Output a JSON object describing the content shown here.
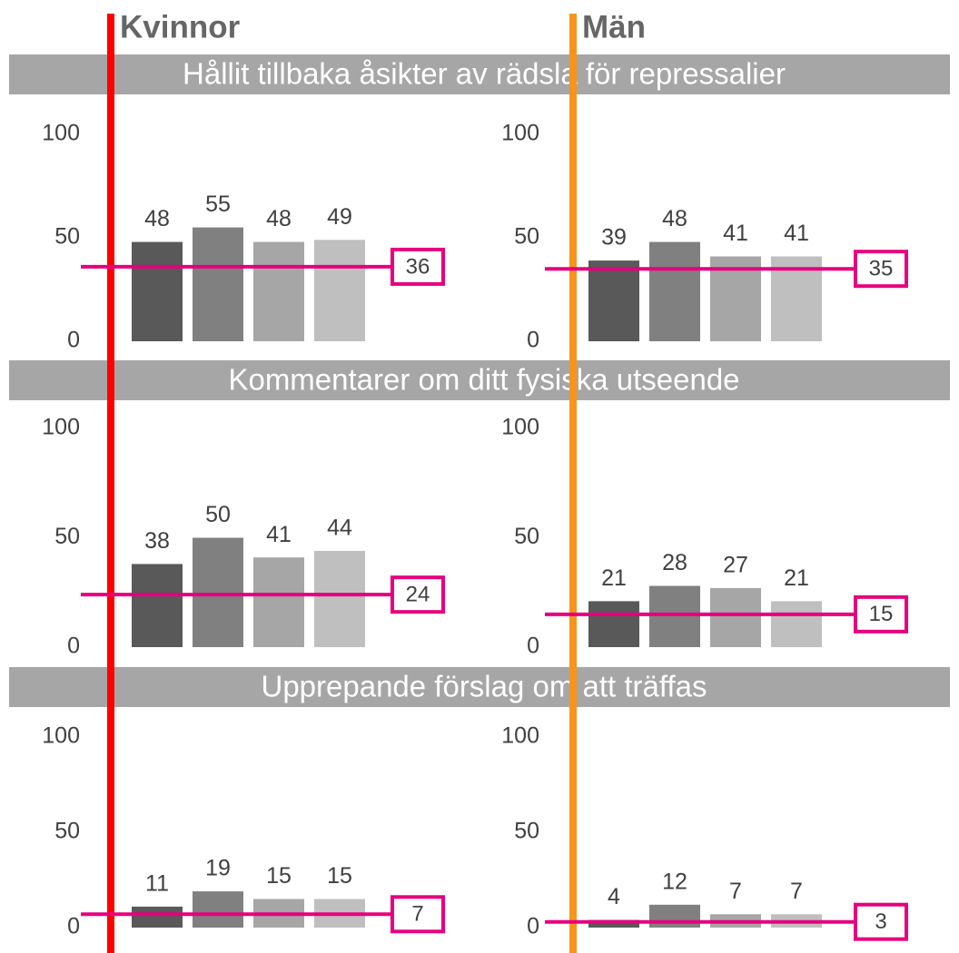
{
  "columns": [
    "Kvinnor",
    "Män"
  ],
  "column_colors": [
    "#ff0000",
    "#f7941d"
  ],
  "sections": [
    "Hållit tillbaka åsikter av rädsla för repressalier",
    "Kommentarer om ditt fysiska utseende",
    "Upprepande förslag om att träffas"
  ],
  "chart_data": [
    {
      "type": "bar",
      "values": [
        48,
        55,
        48,
        49
      ],
      "colors": [
        "#595959",
        "#808080",
        "#a6a6a6",
        "#bfbfbf"
      ],
      "reference": 36,
      "reference_color": "#e6007e",
      "ylim": [
        0,
        100
      ],
      "yticks": [
        0,
        50,
        100
      ]
    },
    {
      "type": "bar",
      "values": [
        39,
        48,
        41,
        41
      ],
      "colors": [
        "#595959",
        "#808080",
        "#a6a6a6",
        "#bfbfbf"
      ],
      "reference": 35,
      "reference_color": "#e6007e",
      "ylim": [
        0,
        100
      ],
      "yticks": [
        0,
        50,
        100
      ]
    },
    {
      "type": "bar",
      "values": [
        38,
        50,
        41,
        44
      ],
      "colors": [
        "#595959",
        "#808080",
        "#a6a6a6",
        "#bfbfbf"
      ],
      "reference": 24,
      "reference_color": "#e6007e",
      "ylim": [
        0,
        100
      ],
      "yticks": [
        0,
        50,
        100
      ]
    },
    {
      "type": "bar",
      "values": [
        21,
        28,
        27,
        21
      ],
      "colors": [
        "#595959",
        "#808080",
        "#a6a6a6",
        "#bfbfbf"
      ],
      "reference": 15,
      "reference_color": "#e6007e",
      "ylim": [
        0,
        100
      ],
      "yticks": [
        0,
        50,
        100
      ]
    },
    {
      "type": "bar",
      "values": [
        11,
        19,
        15,
        15
      ],
      "colors": [
        "#595959",
        "#808080",
        "#a6a6a6",
        "#bfbfbf"
      ],
      "reference": 7,
      "reference_color": "#e6007e",
      "ylim": [
        0,
        100
      ],
      "yticks": [
        0,
        50,
        100
      ]
    },
    {
      "type": "bar",
      "values": [
        4,
        12,
        7,
        7
      ],
      "colors": [
        "#595959",
        "#808080",
        "#a6a6a6",
        "#bfbfbf"
      ],
      "reference": 3,
      "reference_color": "#e6007e",
      "ylim": [
        0,
        100
      ],
      "yticks": [
        0,
        50,
        100
      ]
    }
  ]
}
